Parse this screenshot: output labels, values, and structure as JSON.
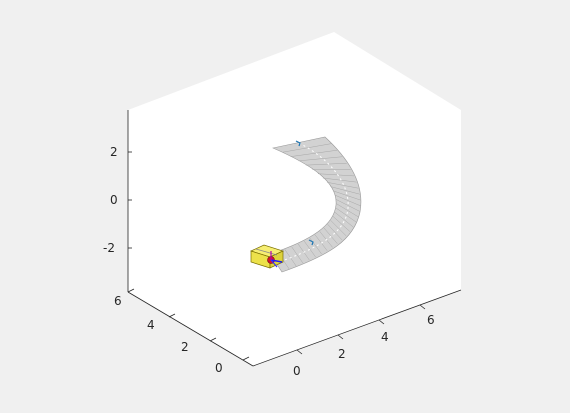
{
  "figure": {
    "background_color": "#f0f0f0",
    "axes_color": "#ffffff",
    "road_color": "#d2d2d2",
    "road_grid_color": "#9a9a9a",
    "center_line_color": "#ffffff",
    "vehicle_color": "#f2e64a"
  },
  "chart_data": {
    "type": "3d-scene",
    "title": "",
    "xlabel": "",
    "ylabel": "",
    "zlabel": "",
    "x_ticks": [
      "0",
      "2",
      "4",
      "6"
    ],
    "y_ticks": [
      "0",
      "2",
      "4",
      "6"
    ],
    "z_ticks": [
      "2",
      "0",
      "-2"
    ],
    "grid": false,
    "objects": [
      {
        "name": "curved-road",
        "kind": "surface"
      },
      {
        "name": "ego-vehicle",
        "kind": "box"
      }
    ]
  }
}
